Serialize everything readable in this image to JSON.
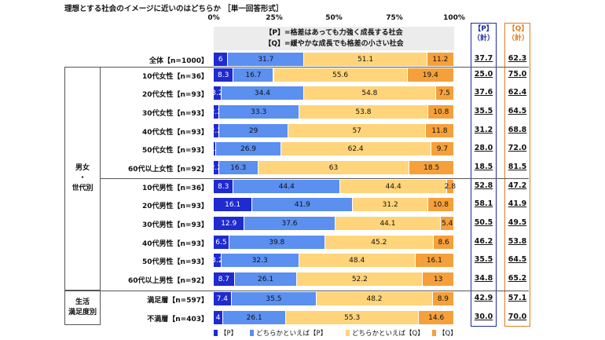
{
  "title": "理想とする社会のイメージに近いのはどちらか ［単一回答形式］",
  "ticks": [
    "0%",
    "25%",
    "50%",
    "75%",
    "100%"
  ],
  "subheads": [
    "【P】=格差はあっても力強く成長する社会",
    "【Q】=緩やかな成長でも格差の小さい社会"
  ],
  "header_p": [
    "【P】",
    "（計）"
  ],
  "header_q": [
    "【Q】",
    "（計）"
  ],
  "groups": {
    "demographic": [
      "男女",
      "・",
      "世代別"
    ],
    "satisfaction": [
      "生活",
      "満足度別"
    ]
  },
  "colors": {
    "p": "#1f2ad0",
    "p_lean": "#5b8ff0",
    "q_lean": "#ffd47a",
    "q": "#f5a03a"
  },
  "legend": [
    "【P】",
    "どちらかといえば【P】",
    "どちらかといえば【Q】",
    "【Q】"
  ],
  "chart_data": {
    "type": "bar",
    "stacked": "percent",
    "orientation": "horizontal",
    "xlim": [
      0,
      100
    ],
    "categories": [
      "全体【n=1000】",
      "10代女性【n=36】",
      "20代女性【n=93】",
      "30代女性【n=93】",
      "40代女性【n=93】",
      "50代女性【n=93】",
      "60代以上女性【n=92】",
      "10代男性【n=36】",
      "20代男性【n=93】",
      "30代男性【n=93】",
      "40代男性【n=93】",
      "50代男性【n=93】",
      "60代以上男性【n=92】",
      "満足層【n=597】",
      "不満層【n=403】"
    ],
    "series": [
      {
        "name": "【P】",
        "values": [
          6.0,
          8.3,
          3.2,
          2.2,
          2.2,
          1.1,
          2.2,
          8.3,
          16.1,
          12.9,
          6.5,
          3.2,
          8.7,
          7.4,
          4.0
        ]
      },
      {
        "name": "どちらかといえば【P】",
        "values": [
          31.7,
          16.7,
          34.4,
          33.3,
          29.0,
          26.9,
          16.3,
          44.4,
          41.9,
          37.6,
          39.8,
          32.3,
          26.1,
          35.5,
          26.1
        ]
      },
      {
        "name": "どちらかといえば【Q】",
        "values": [
          51.1,
          55.6,
          54.8,
          53.8,
          57.0,
          62.4,
          63.0,
          44.4,
          31.2,
          44.1,
          45.2,
          48.4,
          52.2,
          48.2,
          55.3
        ]
      },
      {
        "name": "【Q】",
        "values": [
          11.2,
          19.4,
          7.5,
          10.8,
          11.8,
          9.7,
          18.5,
          2.8,
          10.8,
          5.4,
          8.6,
          16.1,
          13.0,
          8.9,
          14.6
        ]
      }
    ],
    "totals_p": [
      "37.7",
      "25.0",
      "37.6",
      "35.5",
      "31.2",
      "28.0",
      "18.5",
      "52.8",
      "58.1",
      "50.5",
      "46.2",
      "35.5",
      "34.8",
      "42.9",
      "30.0"
    ],
    "totals_q": [
      "62.3",
      "75.0",
      "62.4",
      "64.5",
      "68.8",
      "72.0",
      "81.5",
      "47.2",
      "41.9",
      "49.5",
      "53.8",
      "64.5",
      "65.2",
      "57.1",
      "70.0"
    ]
  }
}
